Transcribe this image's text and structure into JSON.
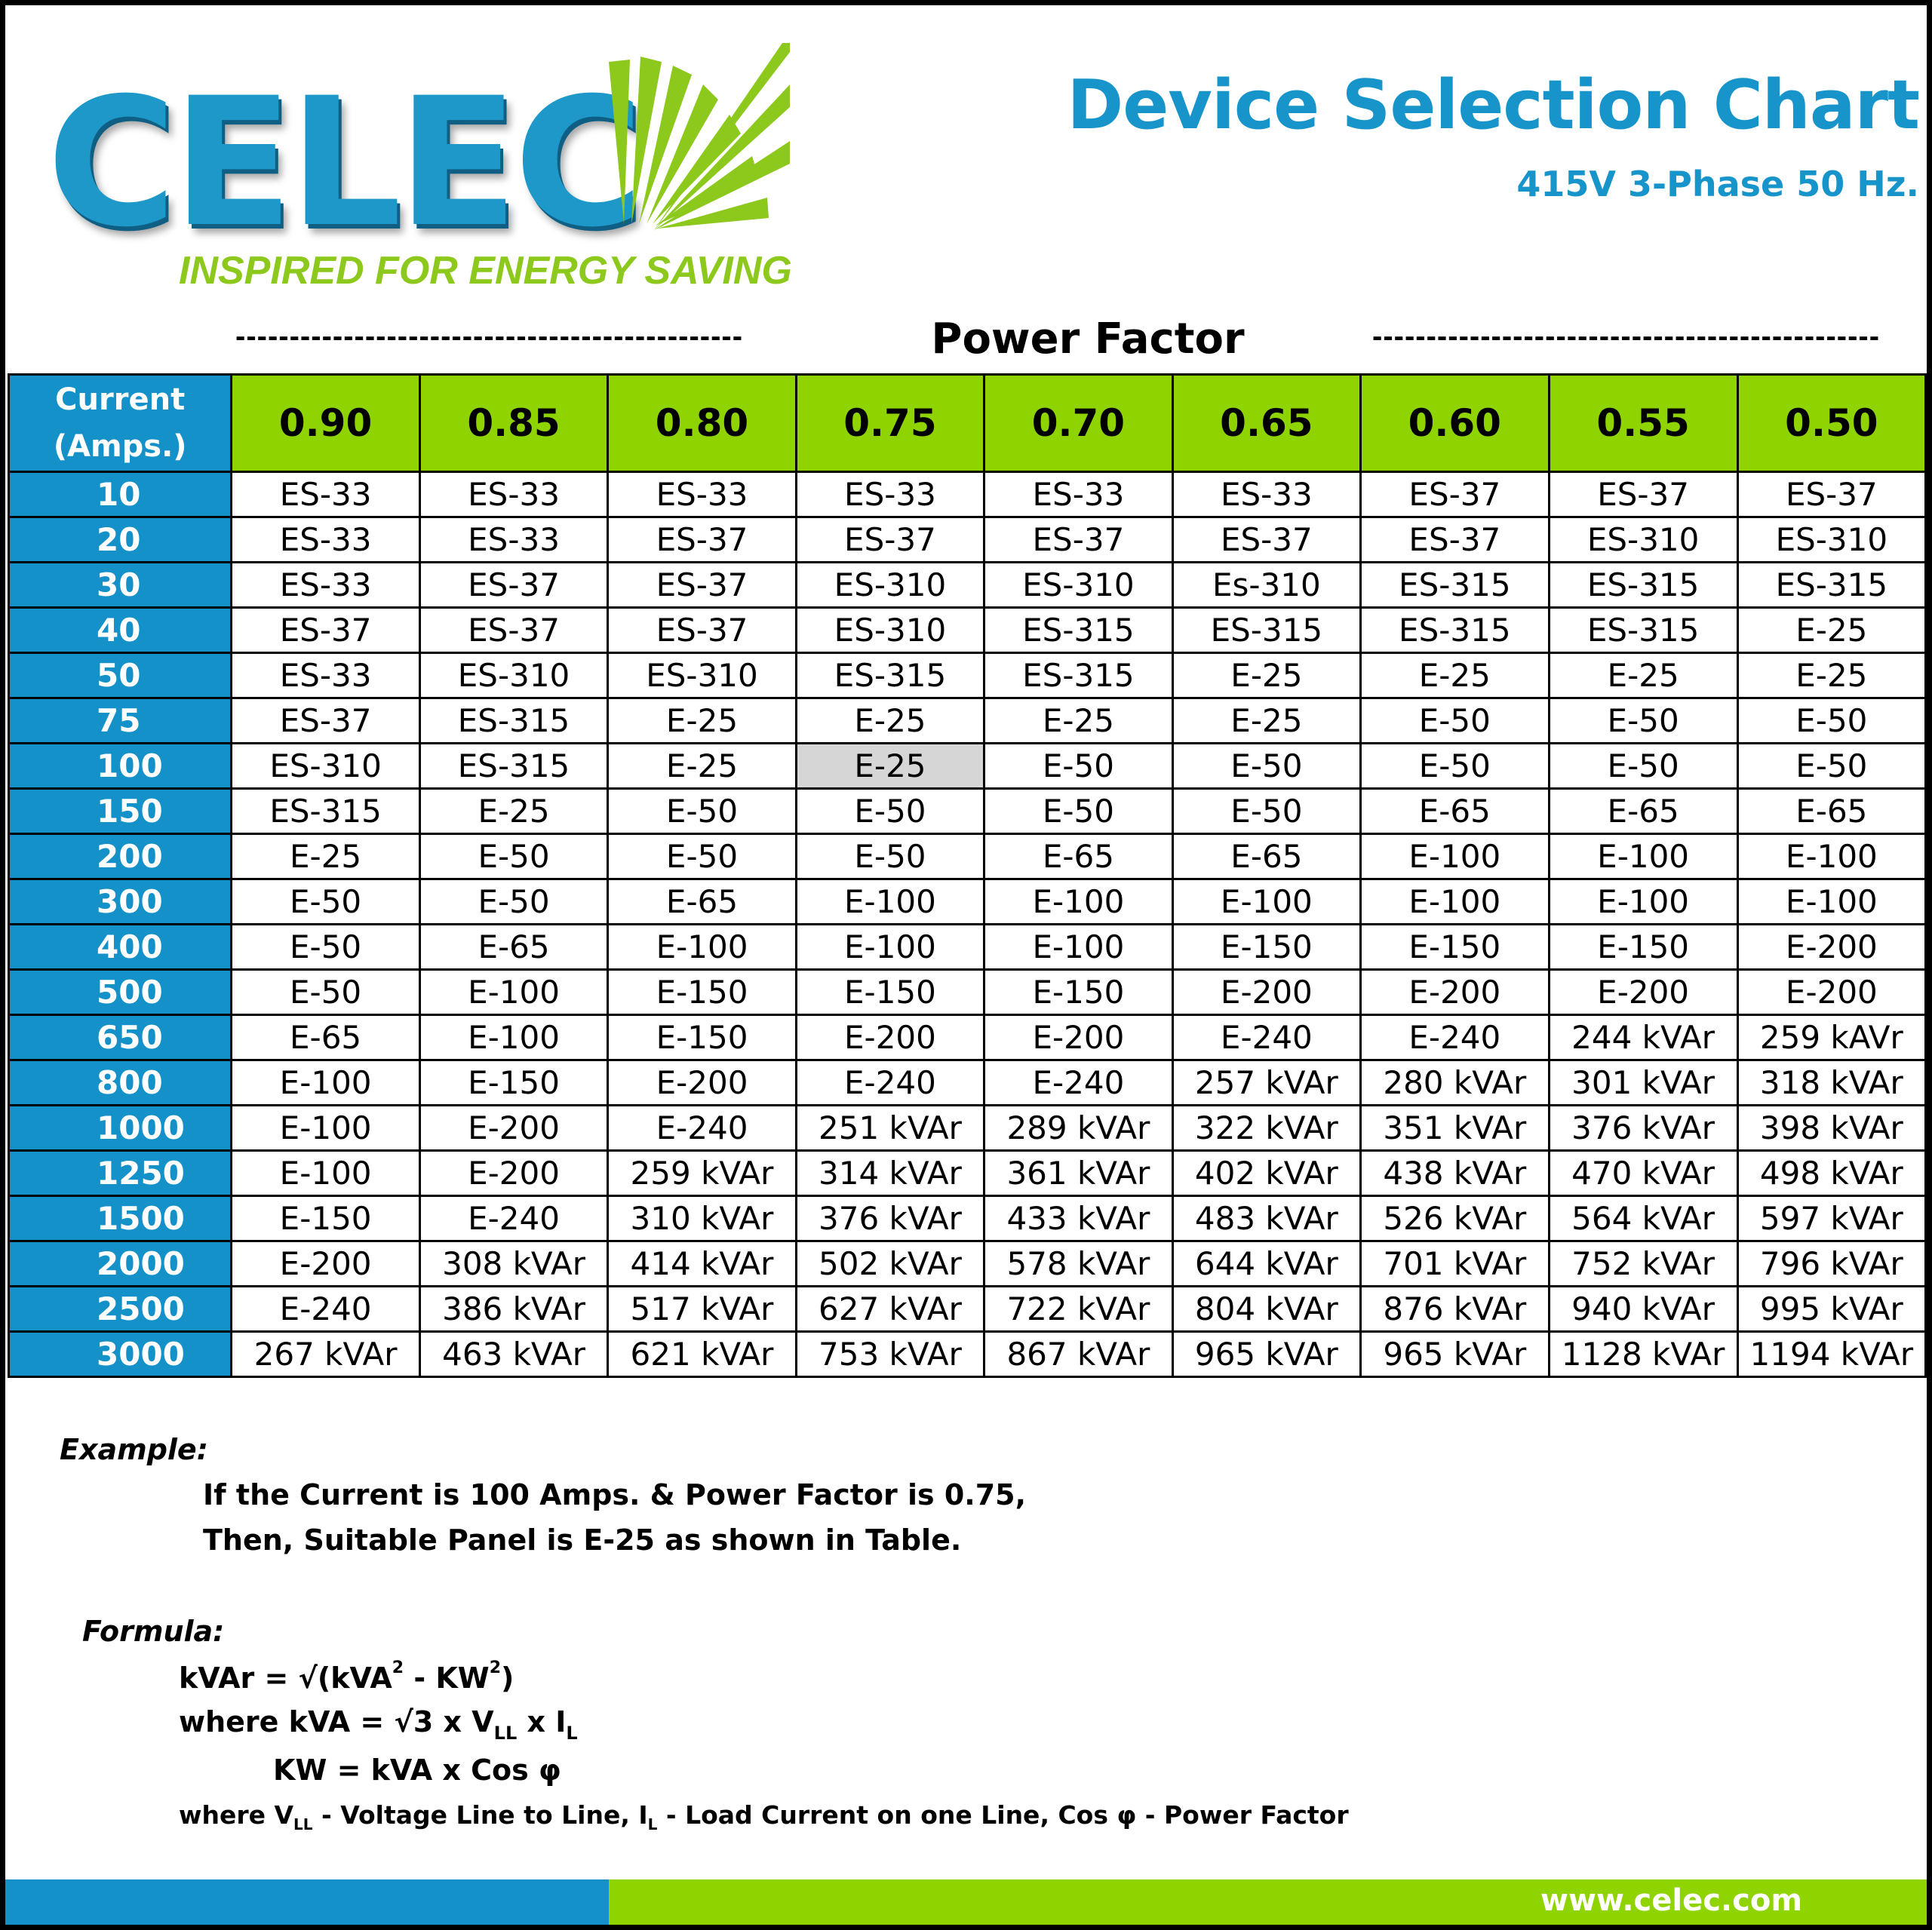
{
  "logo": {
    "word": "CELEC",
    "tagline": "INSPIRED FOR ENERGY SAVING",
    "brand_blue": "#1d98c9",
    "brand_green": "#8dc81c"
  },
  "header": {
    "title": "Device Selection Chart",
    "subtitle": "415V 3-Phase 50 Hz.",
    "power_factor_title": "Power Factor",
    "dashes_left": "-----------------------------------------------",
    "dashes_right": "-----------------------------------------------"
  },
  "table": {
    "current_header_line1": "Current",
    "current_header_line2": "(Amps.)",
    "power_factors": [
      "0.90",
      "0.85",
      "0.80",
      "0.75",
      "0.70",
      "0.65",
      "0.60",
      "0.55",
      "0.50"
    ],
    "rows": [
      {
        "current": "10",
        "cells": [
          "ES-33",
          "ES-33",
          "ES-33",
          "ES-33",
          "ES-33",
          "ES-33",
          "ES-37",
          "ES-37",
          "ES-37"
        ]
      },
      {
        "current": "20",
        "cells": [
          "ES-33",
          "ES-33",
          "ES-37",
          "ES-37",
          "ES-37",
          "ES-37",
          "ES-37",
          "ES-310",
          "ES-310"
        ]
      },
      {
        "current": "30",
        "cells": [
          "ES-33",
          "ES-37",
          "ES-37",
          "ES-310",
          "ES-310",
          "Es-310",
          "ES-315",
          "ES-315",
          "ES-315"
        ]
      },
      {
        "current": "40",
        "cells": [
          "ES-37",
          "ES-37",
          "ES-37",
          "ES-310",
          "ES-315",
          "ES-315",
          "ES-315",
          "ES-315",
          "E-25"
        ]
      },
      {
        "current": "50",
        "cells": [
          "ES-33",
          "ES-310",
          "ES-310",
          "ES-315",
          "ES-315",
          "E-25",
          "E-25",
          "E-25",
          "E-25"
        ]
      },
      {
        "current": "75",
        "cells": [
          "ES-37",
          "ES-315",
          "E-25",
          "E-25",
          "E-25",
          "E-25",
          "E-50",
          "E-50",
          "E-50"
        ]
      },
      {
        "current": "100",
        "cells": [
          "ES-310",
          "ES-315",
          "E-25",
          "E-25",
          "E-50",
          "E-50",
          "E-50",
          "E-50",
          "E-50"
        ]
      },
      {
        "current": "150",
        "cells": [
          "ES-315",
          "E-25",
          "E-50",
          "E-50",
          "E-50",
          "E-50",
          "E-65",
          "E-65",
          "E-65"
        ]
      },
      {
        "current": "200",
        "cells": [
          "E-25",
          "E-50",
          "E-50",
          "E-50",
          "E-65",
          "E-65",
          "E-100",
          "E-100",
          "E-100"
        ]
      },
      {
        "current": "300",
        "cells": [
          "E-50",
          "E-50",
          "E-65",
          "E-100",
          "E-100",
          "E-100",
          "E-100",
          "E-100",
          "E-100"
        ]
      },
      {
        "current": "400",
        "cells": [
          "E-50",
          "E-65",
          "E-100",
          "E-100",
          "E-100",
          "E-150",
          "E-150",
          "E-150",
          "E-200"
        ]
      },
      {
        "current": "500",
        "cells": [
          "E-50",
          "E-100",
          "E-150",
          "E-150",
          "E-150",
          "E-200",
          "E-200",
          "E-200",
          "E-200"
        ]
      },
      {
        "current": "650",
        "cells": [
          "E-65",
          "E-100",
          "E-150",
          "E-200",
          "E-200",
          "E-240",
          "E-240",
          "244 kVAr",
          "259 kAVr"
        ]
      },
      {
        "current": "800",
        "cells": [
          "E-100",
          "E-150",
          "E-200",
          "E-240",
          "E-240",
          "257 kVAr",
          "280 kVAr",
          "301 kVAr",
          "318 kVAr"
        ]
      },
      {
        "current": "1000",
        "cells": [
          "E-100",
          "E-200",
          "E-240",
          "251 kVAr",
          "289 kVAr",
          "322 kVAr",
          "351 kVAr",
          "376 kVAr",
          "398 kVAr"
        ]
      },
      {
        "current": "1250",
        "cells": [
          "E-100",
          "E-200",
          "259 kVAr",
          "314 kVAr",
          "361 kVAr",
          "402 kVAr",
          "438 kVAr",
          "470 kVAr",
          "498 kVAr"
        ]
      },
      {
        "current": "1500",
        "cells": [
          "E-150",
          "E-240",
          "310 kVAr",
          "376 kVAr",
          "433 kVAr",
          "483 kVAr",
          "526 kVAr",
          "564 kVAr",
          "597 kVAr"
        ]
      },
      {
        "current": "2000",
        "cells": [
          "E-200",
          "308 kVAr",
          "414 kVAr",
          "502 kVAr",
          "578 kVAr",
          "644 kVAr",
          "701 kVAr",
          "752 kVAr",
          "796 kVAr"
        ]
      },
      {
        "current": "2500",
        "cells": [
          "E-240",
          "386 kVAr",
          "517 kVAr",
          "627 kVAr",
          "722 kVAr",
          "804 kVAr",
          "876 kVAr",
          "940 kVAr",
          "995 kVAr"
        ]
      },
      {
        "current": "3000",
        "cells": [
          "267 kVAr",
          "463 kVAr",
          "621 kVAr",
          "753 kVAr",
          "867 kVAr",
          "965 kVAr",
          "965 kVAr",
          "1128 kVAr",
          "1194 kVAr"
        ]
      }
    ],
    "highlight": {
      "current": "100",
      "power_factor": "0.75",
      "color": "#d6d6d6"
    },
    "header_green": "#8fd400",
    "header_blue": "#1491c8"
  },
  "example": {
    "label": "Example:",
    "line1": "If the Current is 100 Amps. & Power Factor is 0.75,",
    "line2": "Then, Suitable Panel is E-25 as shown in Table."
  },
  "formula": {
    "label": "Formula:",
    "kvar_lhs": "kVAr = √(kVA",
    "kvar_sup1": "2",
    "kvar_mid": " - KW",
    "kvar_sup2": "2",
    "kvar_end": ")",
    "kva_a": "where kVA = √3 x V",
    "kva_sub_ll": "LL",
    "kva_b": " x I",
    "kva_sub_l": "L",
    "kw": "KW = kVA x Cos φ",
    "note_a": "where V",
    "note_sub_ll": "LL",
    "note_b": " - Voltage Line to Line, I",
    "note_sub_l": "L",
    "note_c": " - Load Current on one Line, Cos φ - Power Factor"
  },
  "footer": {
    "url": "www.celec.com",
    "blue": "#1491c8",
    "green": "#8fd400"
  }
}
